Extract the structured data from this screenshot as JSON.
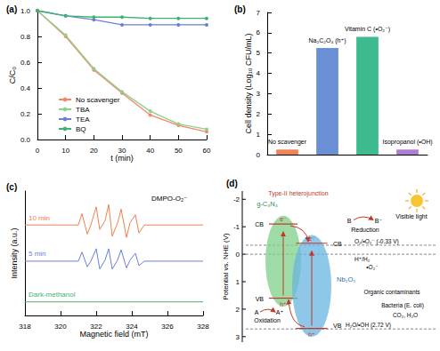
{
  "chart_data": [
    {
      "type": "line",
      "title": "(a)",
      "x": [
        0,
        10,
        20,
        30,
        40,
        50,
        60
      ],
      "series": [
        {
          "name": "No scavenger",
          "color": "#f4866a",
          "values": [
            1,
            0.8,
            0.54,
            0.36,
            0.19,
            0.11,
            0.06
          ]
        },
        {
          "name": "TBA",
          "color": "#8fd18a",
          "values": [
            1,
            0.81,
            0.55,
            0.37,
            0.22,
            0.12,
            0.08
          ]
        },
        {
          "name": "TEA",
          "color": "#6c7fd8",
          "values": [
            1,
            0.96,
            0.93,
            0.89,
            0.89,
            0.89,
            0.89
          ]
        },
        {
          "name": "BQ",
          "color": "#3cb371",
          "values": [
            1,
            0.96,
            0.95,
            0.95,
            0.94,
            0.94,
            0.94
          ]
        }
      ],
      "xlabel": "t (min)",
      "ylabel": "C/C₀",
      "xlim": [
        0,
        60
      ],
      "xticks": [
        0,
        10,
        20,
        30,
        40,
        50,
        60
      ],
      "ylim": [
        0,
        1
      ],
      "yticks": [
        {
          "value": 0,
          "label": "0.0"
        },
        0.2,
        0.4,
        0.6,
        0.8,
        {
          "value": 1,
          "label": "1.0"
        }
      ],
      "legend": "left",
      "marker": "circle"
    },
    {
      "type": "bar",
      "title": "(b)",
      "categories": [
        "No scavenger",
        "Na₂C₂O₄ (h⁺)",
        "Vitamin C (•O₂⁻)",
        "Isopropanol (•OH)"
      ],
      "values": [
        0.25,
        5.25,
        5.8,
        0.25
      ],
      "colors": [
        "#f0855a",
        "#6b8fd4",
        "#3dbb8f",
        "#b07cd0"
      ],
      "ylabel": "Cell density (Log₁₀ CFU/mL)",
      "ylim": [
        0,
        7
      ],
      "yticks": [
        0,
        1,
        2,
        3,
        4,
        5,
        6,
        7
      ]
    },
    {
      "type": "line",
      "title": "(c)",
      "annotation": "DMPO-O₂⁻",
      "x": [
        318,
        321.0,
        321.2,
        321.5,
        321.7,
        322.0,
        322.2,
        322.5,
        322.7,
        322.9,
        323.2,
        323.4,
        323.7,
        323.9,
        324.2,
        324.4,
        324.7,
        325.0,
        328
      ],
      "series": [
        {
          "name": "10 min",
          "color": "#f08050",
          "values": [
            8,
            8,
            9.0,
            7.2,
            8,
            9.6,
            7.6,
            8.4,
            9.8,
            7.0,
            8.2,
            9.4,
            6.9,
            8.2,
            8.9,
            7.3,
            8,
            8,
            8
          ]
        },
        {
          "name": "5 min",
          "color": "#6c7fd8",
          "values": [
            4.8,
            4.8,
            5.6,
            4.3,
            4.8,
            5.9,
            4.1,
            4.9,
            5.9,
            4.1,
            4.9,
            5.8,
            4.2,
            4.9,
            5.5,
            4.4,
            4.8,
            4.8,
            4.8
          ]
        },
        {
          "name": "Dark-methanol",
          "color": "#3cb371",
          "values": [
            1.2,
            1.2,
            1.2,
            1.2,
            1.2,
            1.2,
            1.2,
            1.2,
            1.2,
            1.2,
            1.2,
            1.2,
            1.2,
            1.2,
            1.2,
            1.2,
            1.2,
            1.2,
            1.2
          ]
        }
      ],
      "xlabel": "Magnetic field (mT)",
      "ylabel": "Intensity (a.u.)",
      "xlim": [
        318,
        328
      ],
      "xticks": [
        318,
        320,
        322,
        324,
        326,
        328
      ],
      "ylim": [
        0,
        11
      ],
      "tick_labels": "x",
      "marker": "none"
    }
  ],
  "diagram": {
    "title": "(d)",
    "axis_label": "Potential vs. NHE (V)",
    "ylim": [
      -2.3,
      3.2
    ],
    "ticks": [
      -2,
      -1,
      0,
      1,
      2,
      3
    ],
    "semiconductors": [
      {
        "label": "g-C₃N₄",
        "cb": -1.1,
        "vb": 1.6,
        "color": "#7fcf8a"
      },
      {
        "label": "Nb₂O₅",
        "cb": -0.4,
        "vb": 2.7,
        "color": "#6ab4e0"
      }
    ],
    "heterojunction": "Type-II heterojunction",
    "band_labels": {
      "cb": "CB",
      "vb": "VB"
    },
    "levels": [
      {
        "label": "O₂/•O₂⁻ (-0.33 V)",
        "value": -0.33
      },
      {
        "label": "H⁺/H₂",
        "value": 0
      },
      {
        "label": "H₂O/•OH (2.72 V)",
        "value": 2.72
      }
    ],
    "carriers": {
      "electron": "e⁻",
      "hole": "h⁺"
    },
    "reduction": {
      "label": "Reduction",
      "from": "B",
      "to": "B⁻"
    },
    "oxidation": {
      "label": "Oxidation",
      "from": "A",
      "to": "A⁺"
    },
    "light": "Visible light",
    "targets": [
      "•O₂⁻",
      "Organic contaminants",
      "Bacteria (E. coli)",
      "CO₂, H₂O"
    ]
  }
}
